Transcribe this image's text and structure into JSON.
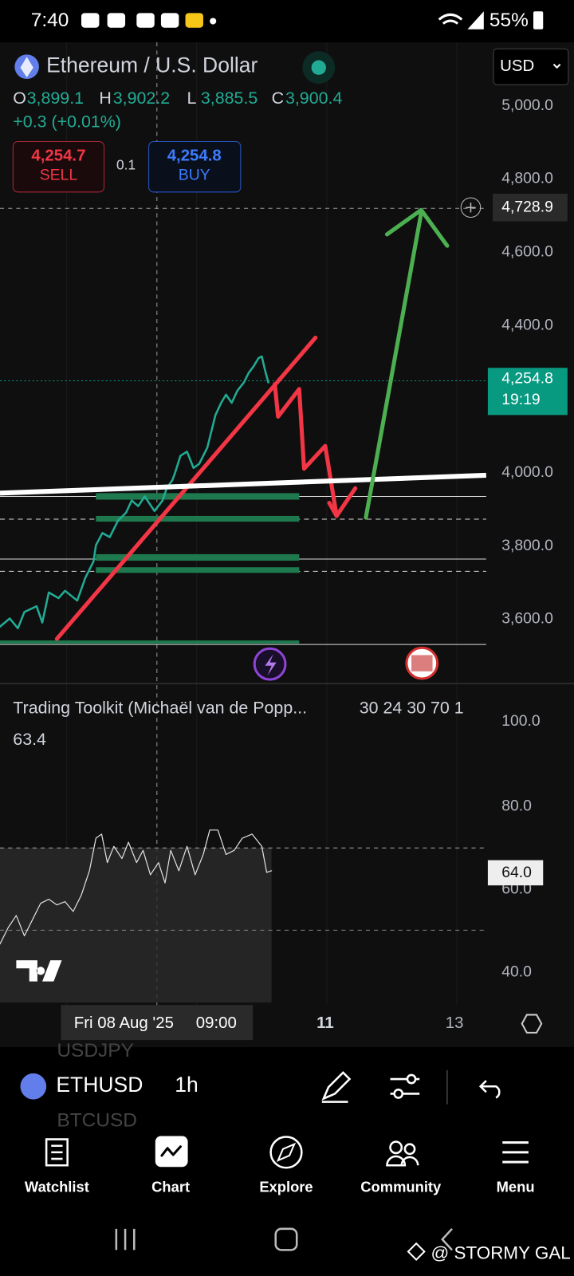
{
  "status_bar": {
    "time": "7:40",
    "battery": "55%"
  },
  "header": {
    "symbol_title": "Ethereum / U.S. Dollar",
    "currency": "USD"
  },
  "ohlc": {
    "o_label": "O",
    "o": "3,899.1",
    "h_label": "H",
    "h": "3,902.2",
    "l_label": "L",
    "l": "3,885.5",
    "c_label": "C",
    "c": "3,900.4",
    "change": "+0.3 (+0.01%)"
  },
  "trade": {
    "sell_price": "4,254.7",
    "sell_label": "SELL",
    "quantity": "0.1",
    "buy_price": "4,254.8",
    "buy_label": "BUY"
  },
  "price_axis": {
    "labels": [
      "5,000.0",
      "4,800.0",
      "4,600.0",
      "4,400.0",
      "4,000.0",
      "3,800.0",
      "3,600.0"
    ],
    "crosshair_price": "4,728.9",
    "last_price": "4,254.8",
    "countdown": "19:19"
  },
  "indicator": {
    "name": "Trading Toolkit (Michaël van de Popp...",
    "params": "30 24 30 70 1",
    "value": "63.4",
    "axis_labels": [
      "100.0",
      "80.0",
      "60.0",
      "40.0"
    ],
    "current": "64.0"
  },
  "time_axis": {
    "crosshair_date": "Fri 08 Aug '25",
    "crosshair_time": "09:00",
    "labels": [
      "11",
      "13"
    ]
  },
  "toolbar": {
    "symbol": "ETHUSD",
    "interval": "1h",
    "ghost": [
      "USDJPY",
      "BTCUSD"
    ]
  },
  "nav": [
    "Watchlist",
    "Chart",
    "Explore",
    "Community",
    "Menu"
  ],
  "watermark": "@ STORMY GAL"
}
